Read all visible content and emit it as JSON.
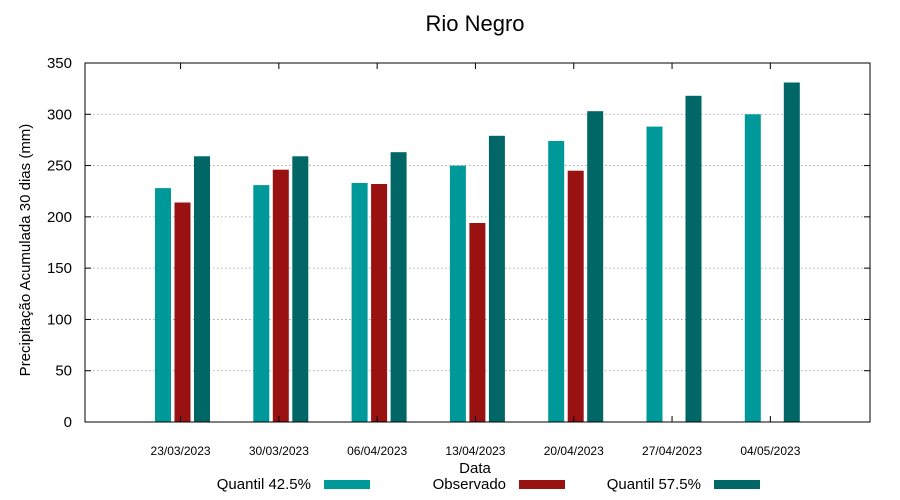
{
  "chart_data": {
    "type": "bar",
    "title": "Rio Negro",
    "xlabel": "Data",
    "ylabel": "Precipitação Acumulada 30 dias (mm)",
    "ylim": [
      0,
      350
    ],
    "yticks": [
      0,
      50,
      100,
      150,
      200,
      250,
      300,
      350
    ],
    "grid": true,
    "legend_position": "bottom",
    "categories": [
      "23/03/2023",
      "30/03/2023",
      "06/04/2023",
      "13/04/2023",
      "20/04/2023",
      "27/04/2023",
      "04/05/2023"
    ],
    "series": [
      {
        "name": "Quantil 42.5%",
        "color": "#009999",
        "values": [
          228,
          231,
          233,
          250,
          274,
          288,
          300
        ]
      },
      {
        "name": "Observado",
        "color": "#991111",
        "values": [
          214,
          246,
          232,
          194,
          245,
          null,
          null
        ]
      },
      {
        "name": "Quantil 57.5%",
        "color": "#006666",
        "values": [
          259,
          259,
          263,
          279,
          303,
          318,
          331
        ]
      }
    ]
  }
}
